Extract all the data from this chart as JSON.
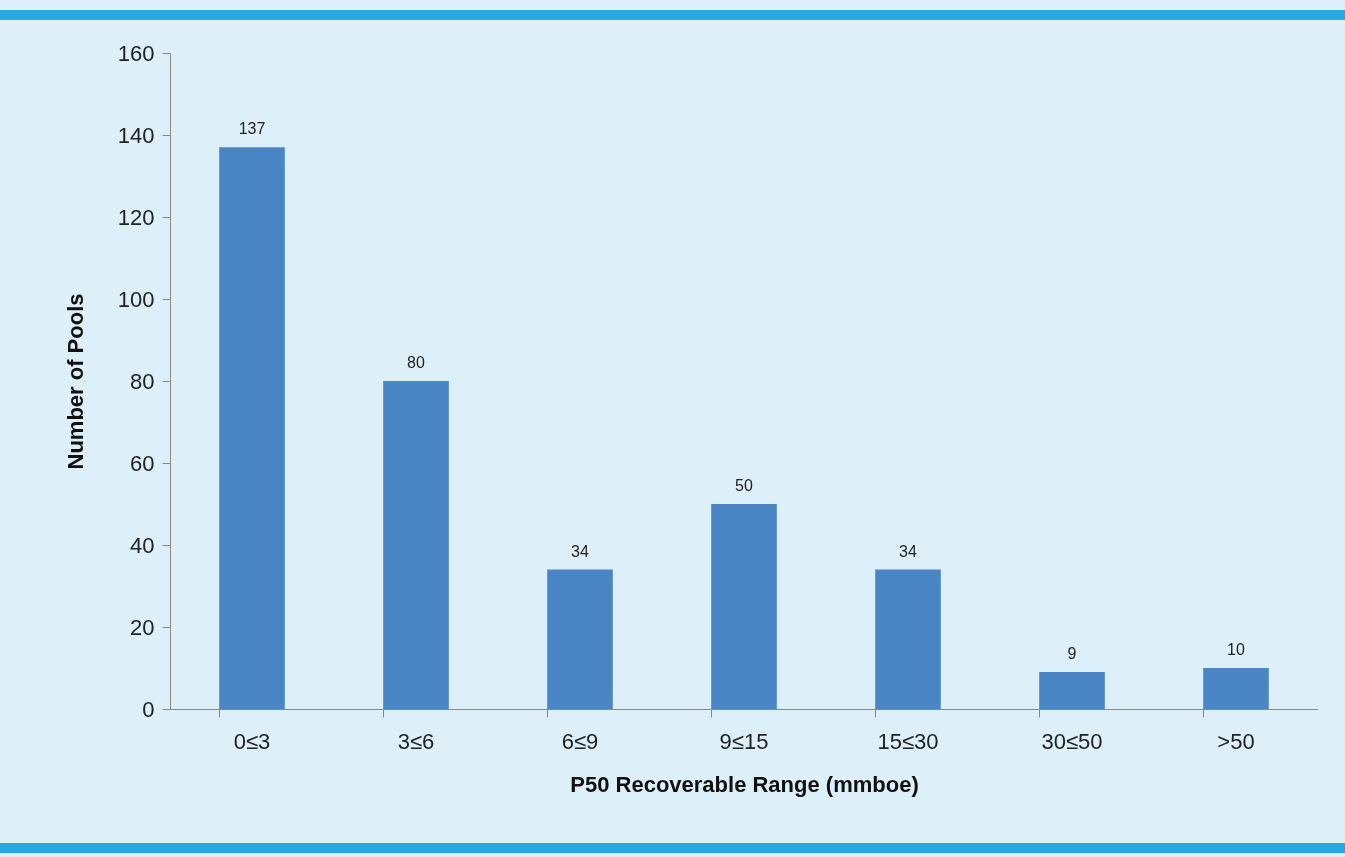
{
  "chart_data": {
    "type": "bar",
    "xlabel": "P50 Recoverable Range (mmboe)",
    "ylabel": "Number of  Pools",
    "categories": [
      "0≤3",
      "3≤6",
      "6≤9",
      "9≤15",
      "15≤30",
      "30≤50",
      ">50"
    ],
    "values": [
      137,
      80,
      34,
      50,
      34,
      9,
      10
    ],
    "color": "#4a86c5",
    "ylim": [
      0,
      160
    ],
    "yticks": [
      0,
      20,
      40,
      60,
      80,
      100,
      120,
      140,
      160
    ],
    "data_labels": true
  }
}
